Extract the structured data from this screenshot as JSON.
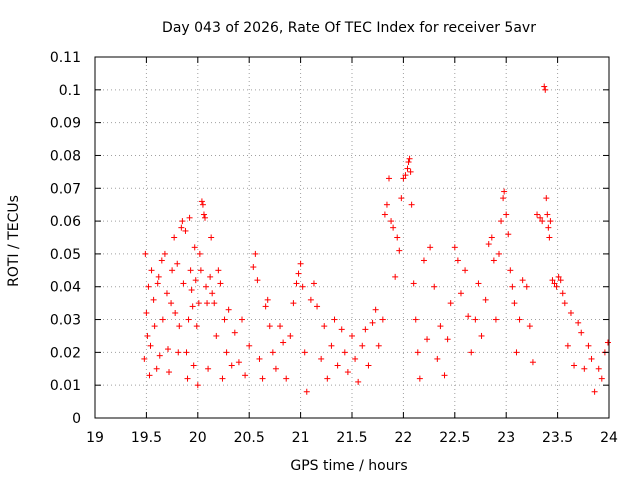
{
  "chart_data": {
    "type": "scatter",
    "title": "Day 043 of 2026, Rate Of TEC Index for receiver 5avr",
    "xlabel": "GPS time / hours",
    "ylabel": "ROTI / TECUs",
    "xlim": [
      19,
      24
    ],
    "ylim": [
      0,
      0.11
    ],
    "xticks": [
      "19",
      "19.5",
      "20",
      "20.5",
      "21",
      "21.5",
      "22",
      "22.5",
      "23",
      "23.5",
      "24"
    ],
    "yticks": [
      "0",
      "0.01",
      "0.02",
      "0.03",
      "0.04",
      "0.05",
      "0.06",
      "0.07",
      "0.08",
      "0.09",
      "0.1",
      "0.11"
    ],
    "grid": true,
    "marker": "+",
    "marker_color": "#ff0000",
    "series": [
      {
        "points": [
          [
            19.48,
            0.018
          ],
          [
            19.49,
            0.05
          ],
          [
            19.5,
            0.032
          ],
          [
            19.51,
            0.025
          ],
          [
            19.52,
            0.04
          ],
          [
            19.53,
            0.013
          ],
          [
            19.54,
            0.022
          ],
          [
            19.55,
            0.045
          ],
          [
            19.57,
            0.036
          ],
          [
            19.58,
            0.028
          ],
          [
            19.6,
            0.015
          ],
          [
            19.61,
            0.041
          ],
          [
            19.62,
            0.043
          ],
          [
            19.63,
            0.019
          ],
          [
            19.65,
            0.048
          ],
          [
            19.66,
            0.03
          ],
          [
            19.68,
            0.05
          ],
          [
            19.7,
            0.038
          ],
          [
            19.71,
            0.021
          ],
          [
            19.72,
            0.014
          ],
          [
            19.74,
            0.035
          ],
          [
            19.75,
            0.045
          ],
          [
            19.77,
            0.055
          ],
          [
            19.78,
            0.032
          ],
          [
            19.8,
            0.047
          ],
          [
            19.81,
            0.02
          ],
          [
            19.82,
            0.028
          ],
          [
            19.84,
            0.058
          ],
          [
            19.85,
            0.06
          ],
          [
            19.86,
            0.041
          ],
          [
            19.88,
            0.057
          ],
          [
            19.89,
            0.02
          ],
          [
            19.9,
            0.012
          ],
          [
            19.91,
            0.03
          ],
          [
            19.92,
            0.061
          ],
          [
            19.93,
            0.045
          ],
          [
            19.94,
            0.039
          ],
          [
            19.95,
            0.034
          ],
          [
            19.96,
            0.016
          ],
          [
            19.97,
            0.052
          ],
          [
            19.98,
            0.042
          ],
          [
            19.99,
            0.028
          ],
          [
            20.0,
            0.01
          ],
          [
            20.01,
            0.035
          ],
          [
            20.02,
            0.05
          ],
          [
            20.03,
            0.045
          ],
          [
            20.04,
            0.066
          ],
          [
            20.05,
            0.065
          ],
          [
            20.06,
            0.062
          ],
          [
            20.07,
            0.061
          ],
          [
            20.08,
            0.04
          ],
          [
            20.09,
            0.035
          ],
          [
            20.1,
            0.015
          ],
          [
            20.12,
            0.043
          ],
          [
            20.13,
            0.055
          ],
          [
            20.14,
            0.038
          ],
          [
            20.16,
            0.035
          ],
          [
            20.18,
            0.025
          ],
          [
            20.2,
            0.045
          ],
          [
            20.22,
            0.041
          ],
          [
            20.24,
            0.012
          ],
          [
            20.26,
            0.03
          ],
          [
            20.28,
            0.02
          ],
          [
            20.3,
            0.033
          ],
          [
            20.33,
            0.016
          ],
          [
            20.36,
            0.026
          ],
          [
            20.4,
            0.017
          ],
          [
            20.43,
            0.03
          ],
          [
            20.46,
            0.013
          ],
          [
            20.5,
            0.022
          ],
          [
            20.54,
            0.046
          ],
          [
            20.56,
            0.05
          ],
          [
            20.58,
            0.042
          ],
          [
            20.6,
            0.018
          ],
          [
            20.63,
            0.012
          ],
          [
            20.66,
            0.034
          ],
          [
            20.68,
            0.036
          ],
          [
            20.7,
            0.028
          ],
          [
            20.73,
            0.02
          ],
          [
            20.76,
            0.015
          ],
          [
            20.8,
            0.028
          ],
          [
            20.83,
            0.023
          ],
          [
            20.86,
            0.012
          ],
          [
            20.9,
            0.025
          ],
          [
            20.93,
            0.035
          ],
          [
            20.96,
            0.041
          ],
          [
            20.98,
            0.044
          ],
          [
            21.0,
            0.047
          ],
          [
            21.02,
            0.04
          ],
          [
            21.04,
            0.02
          ],
          [
            21.06,
            0.008
          ],
          [
            21.1,
            0.036
          ],
          [
            21.13,
            0.041
          ],
          [
            21.16,
            0.034
          ],
          [
            21.2,
            0.018
          ],
          [
            21.23,
            0.028
          ],
          [
            21.26,
            0.012
          ],
          [
            21.3,
            0.022
          ],
          [
            21.33,
            0.03
          ],
          [
            21.36,
            0.016
          ],
          [
            21.4,
            0.027
          ],
          [
            21.43,
            0.02
          ],
          [
            21.46,
            0.014
          ],
          [
            21.5,
            0.025
          ],
          [
            21.53,
            0.018
          ],
          [
            21.56,
            0.011
          ],
          [
            21.6,
            0.022
          ],
          [
            21.63,
            0.027
          ],
          [
            21.66,
            0.016
          ],
          [
            21.7,
            0.029
          ],
          [
            21.73,
            0.033
          ],
          [
            21.76,
            0.022
          ],
          [
            21.8,
            0.03
          ],
          [
            21.82,
            0.062
          ],
          [
            21.84,
            0.065
          ],
          [
            21.86,
            0.073
          ],
          [
            21.88,
            0.06
          ],
          [
            21.9,
            0.058
          ],
          [
            21.92,
            0.043
          ],
          [
            21.94,
            0.055
          ],
          [
            21.96,
            0.051
          ],
          [
            21.98,
            0.067
          ],
          [
            22.0,
            0.073
          ],
          [
            22.02,
            0.074
          ],
          [
            22.04,
            0.076
          ],
          [
            22.05,
            0.078
          ],
          [
            22.06,
            0.079
          ],
          [
            22.07,
            0.075
          ],
          [
            22.08,
            0.065
          ],
          [
            22.1,
            0.041
          ],
          [
            22.12,
            0.03
          ],
          [
            22.14,
            0.02
          ],
          [
            22.16,
            0.012
          ],
          [
            22.2,
            0.048
          ],
          [
            22.23,
            0.024
          ],
          [
            22.26,
            0.052
          ],
          [
            22.3,
            0.04
          ],
          [
            22.33,
            0.018
          ],
          [
            22.36,
            0.028
          ],
          [
            22.4,
            0.013
          ],
          [
            22.43,
            0.024
          ],
          [
            22.46,
            0.035
          ],
          [
            22.5,
            0.052
          ],
          [
            22.53,
            0.048
          ],
          [
            22.56,
            0.038
          ],
          [
            22.6,
            0.045
          ],
          [
            22.63,
            0.031
          ],
          [
            22.66,
            0.02
          ],
          [
            22.7,
            0.03
          ],
          [
            22.73,
            0.041
          ],
          [
            22.76,
            0.025
          ],
          [
            22.8,
            0.036
          ],
          [
            22.83,
            0.053
          ],
          [
            22.86,
            0.055
          ],
          [
            22.88,
            0.048
          ],
          [
            22.9,
            0.03
          ],
          [
            22.93,
            0.05
          ],
          [
            22.95,
            0.06
          ],
          [
            22.97,
            0.067
          ],
          [
            22.98,
            0.069
          ],
          [
            23.0,
            0.062
          ],
          [
            23.02,
            0.056
          ],
          [
            23.04,
            0.045
          ],
          [
            23.06,
            0.04
          ],
          [
            23.08,
            0.035
          ],
          [
            23.1,
            0.02
          ],
          [
            23.13,
            0.03
          ],
          [
            23.16,
            0.042
          ],
          [
            23.2,
            0.04
          ],
          [
            23.23,
            0.028
          ],
          [
            23.26,
            0.017
          ],
          [
            23.3,
            0.062
          ],
          [
            23.33,
            0.061
          ],
          [
            23.35,
            0.06
          ],
          [
            23.37,
            0.101
          ],
          [
            23.38,
            0.1
          ],
          [
            23.39,
            0.067
          ],
          [
            23.4,
            0.062
          ],
          [
            23.41,
            0.058
          ],
          [
            23.42,
            0.055
          ],
          [
            23.43,
            0.06
          ],
          [
            23.45,
            0.042
          ],
          [
            23.47,
            0.041
          ],
          [
            23.49,
            0.04
          ],
          [
            23.51,
            0.043
          ],
          [
            23.53,
            0.042
          ],
          [
            23.55,
            0.038
          ],
          [
            23.57,
            0.035
          ],
          [
            23.6,
            0.022
          ],
          [
            23.63,
            0.032
          ],
          [
            23.66,
            0.016
          ],
          [
            23.7,
            0.029
          ],
          [
            23.73,
            0.026
          ],
          [
            23.76,
            0.015
          ],
          [
            23.8,
            0.022
          ],
          [
            23.83,
            0.018
          ],
          [
            23.86,
            0.008
          ],
          [
            23.9,
            0.015
          ],
          [
            23.93,
            0.012
          ],
          [
            23.96,
            0.02
          ],
          [
            23.99,
            0.023
          ]
        ]
      }
    ]
  }
}
